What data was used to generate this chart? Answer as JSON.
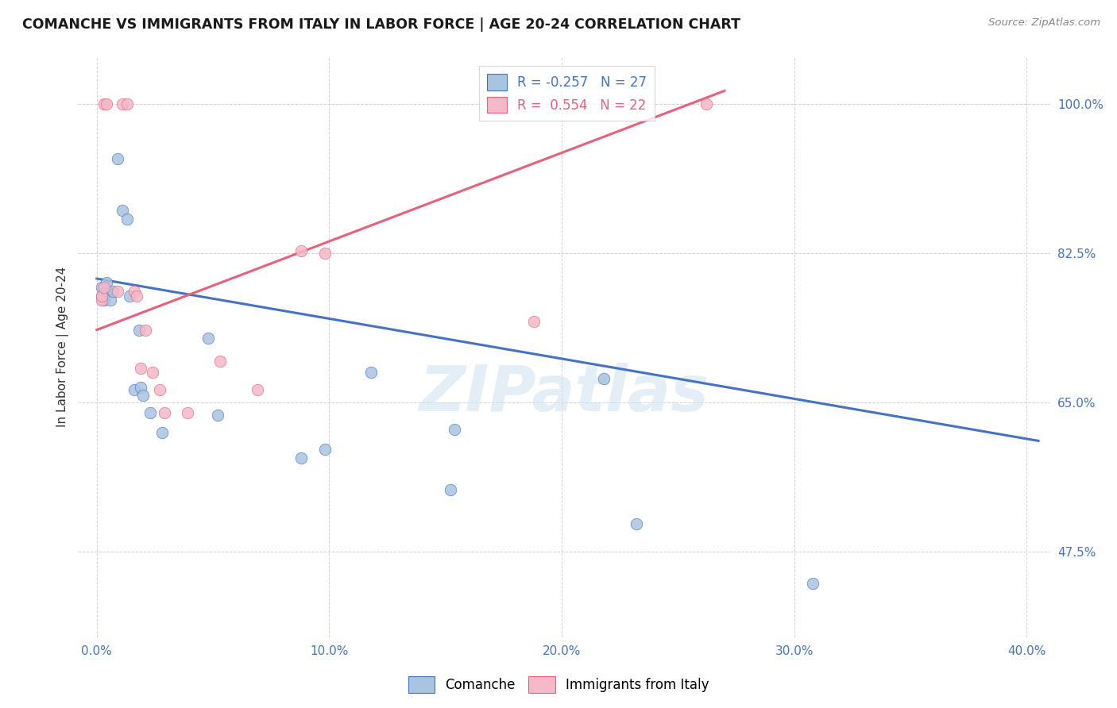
{
  "title": "COMANCHE VS IMMIGRANTS FROM ITALY IN LABOR FORCE | AGE 20-24 CORRELATION CHART",
  "source": "Source: ZipAtlas.com",
  "xlabel_ticks": [
    "0.0%",
    "",
    "",
    "",
    "",
    "10.0%",
    "",
    "",
    "",
    "",
    "20.0%",
    "",
    "",
    "",
    "",
    "30.0%",
    "",
    "",
    "",
    "",
    "40.0%"
  ],
  "xlabel_tick_vals": [
    0.0,
    0.02,
    0.04,
    0.06,
    0.08,
    0.1,
    0.12,
    0.14,
    0.16,
    0.18,
    0.2,
    0.22,
    0.24,
    0.26,
    0.28,
    0.3,
    0.32,
    0.34,
    0.36,
    0.38,
    0.4
  ],
  "ylabel": "In Labor Force | Age 20-24",
  "ylabel_ticks": [
    "100.0%",
    "82.5%",
    "65.0%",
    "47.5%"
  ],
  "ylabel_tick_vals": [
    1.0,
    0.825,
    0.65,
    0.475
  ],
  "xlim": [
    -0.008,
    0.41
  ],
  "ylim": [
    0.375,
    1.055
  ],
  "comanche_R": -0.257,
  "comanche_N": 27,
  "italy_R": 0.554,
  "italy_N": 22,
  "comanche_color": "#a8c4e0",
  "italy_color": "#f4b8c8",
  "comanche_line_color": "#4472c4",
  "italy_line_color": "#e8607a",
  "watermark": "ZIPatlas",
  "comanche_x": [
    0.002,
    0.002,
    0.003,
    0.004,
    0.004,
    0.006,
    0.007,
    0.009,
    0.011,
    0.013,
    0.014,
    0.016,
    0.018,
    0.019,
    0.02,
    0.023,
    0.028,
    0.048,
    0.052,
    0.088,
    0.098,
    0.118,
    0.152,
    0.154,
    0.218,
    0.232,
    0.308
  ],
  "comanche_y": [
    0.775,
    0.785,
    0.77,
    0.78,
    0.79,
    0.77,
    0.78,
    0.935,
    0.875,
    0.865,
    0.775,
    0.665,
    0.735,
    0.668,
    0.658,
    0.638,
    0.615,
    0.725,
    0.635,
    0.585,
    0.595,
    0.685,
    0.548,
    0.618,
    0.678,
    0.508,
    0.438
  ],
  "italy_x": [
    0.002,
    0.002,
    0.003,
    0.003,
    0.004,
    0.009,
    0.011,
    0.013,
    0.016,
    0.017,
    0.019,
    0.021,
    0.024,
    0.027,
    0.029,
    0.039,
    0.053,
    0.069,
    0.088,
    0.098,
    0.188,
    0.262
  ],
  "italy_y": [
    0.77,
    0.775,
    0.785,
    1.0,
    1.0,
    0.78,
    1.0,
    1.0,
    0.78,
    0.775,
    0.69,
    0.735,
    0.685,
    0.665,
    0.638,
    0.638,
    0.698,
    0.665,
    0.828,
    0.825,
    0.745,
    1.0
  ],
  "comanche_trend_x0": 0.0,
  "comanche_trend_x1": 0.405,
  "comanche_trend_y0": 0.795,
  "comanche_trend_y1": 0.605,
  "italy_trend_x0": 0.0,
  "italy_trend_x1": 0.27,
  "italy_trend_y0": 0.735,
  "italy_trend_y1": 1.015
}
